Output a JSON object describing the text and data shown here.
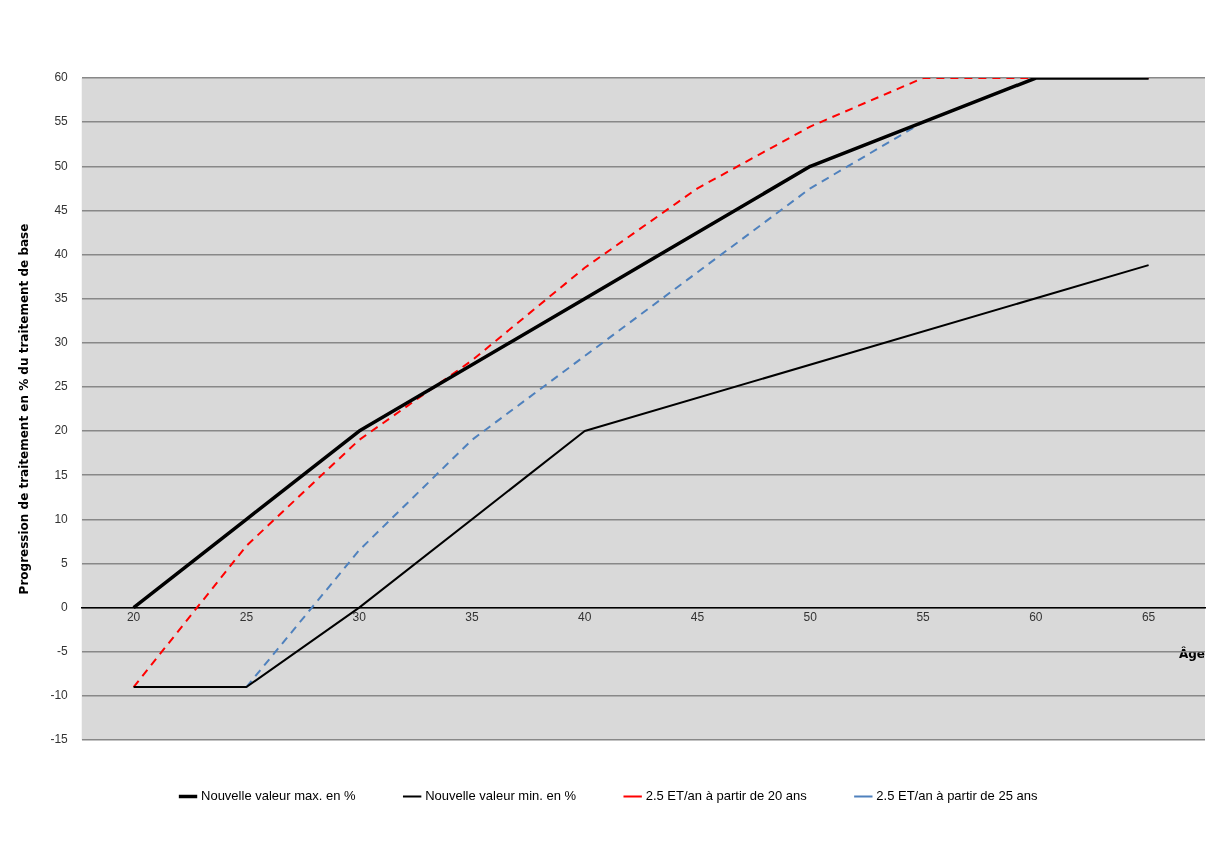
{
  "chart_data": {
    "type": "line",
    "xlabel": "Âge",
    "ylabel": "Progression de traitement en % du traitement de base",
    "xlim": [
      17.7,
      67.5
    ],
    "xticks": [
      20,
      25,
      30,
      35,
      40,
      45,
      50,
      55,
      60,
      65
    ],
    "ylim": [
      -15,
      60
    ],
    "yticks": [
      -15,
      -10,
      -5,
      0,
      5,
      10,
      15,
      20,
      25,
      30,
      35,
      40,
      45,
      50,
      55,
      60
    ],
    "grid": "y",
    "legend": "bottom",
    "marker": "none",
    "series": [
      {
        "name": "Nouvelle valeur max. en %",
        "color": "#000000",
        "line_style": "solid",
        "x": [
          20,
          25,
          30,
          40,
          50,
          60,
          65
        ],
        "values": [
          0,
          10,
          20,
          35,
          50,
          60,
          60
        ]
      },
      {
        "name": "Nouvelle valeur min. en %",
        "color": "#000000",
        "line_style": "solid",
        "x": [
          20,
          25,
          30,
          40,
          65
        ],
        "values": [
          -9,
          -9,
          0,
          20,
          38.8
        ]
      },
      {
        "name": "2.5 ET/an à partir de 20 ans",
        "color": "#ff0000",
        "line_style": "dashed",
        "x": [
          20,
          25,
          30,
          35,
          40,
          45,
          50,
          55,
          60,
          65
        ],
        "values": [
          -9,
          7,
          19,
          28,
          38.5,
          47.5,
          54.5,
          60,
          60,
          60
        ]
      },
      {
        "name": "2.5 ET/an à partir de 25 ans",
        "color": "#4f81bd",
        "line_style": "dashed",
        "x": [
          25,
          30,
          35,
          40,
          45,
          50,
          55,
          60,
          65
        ],
        "values": [
          -9,
          6.5,
          19,
          28.5,
          38,
          47.5,
          55,
          60,
          60
        ]
      }
    ]
  }
}
